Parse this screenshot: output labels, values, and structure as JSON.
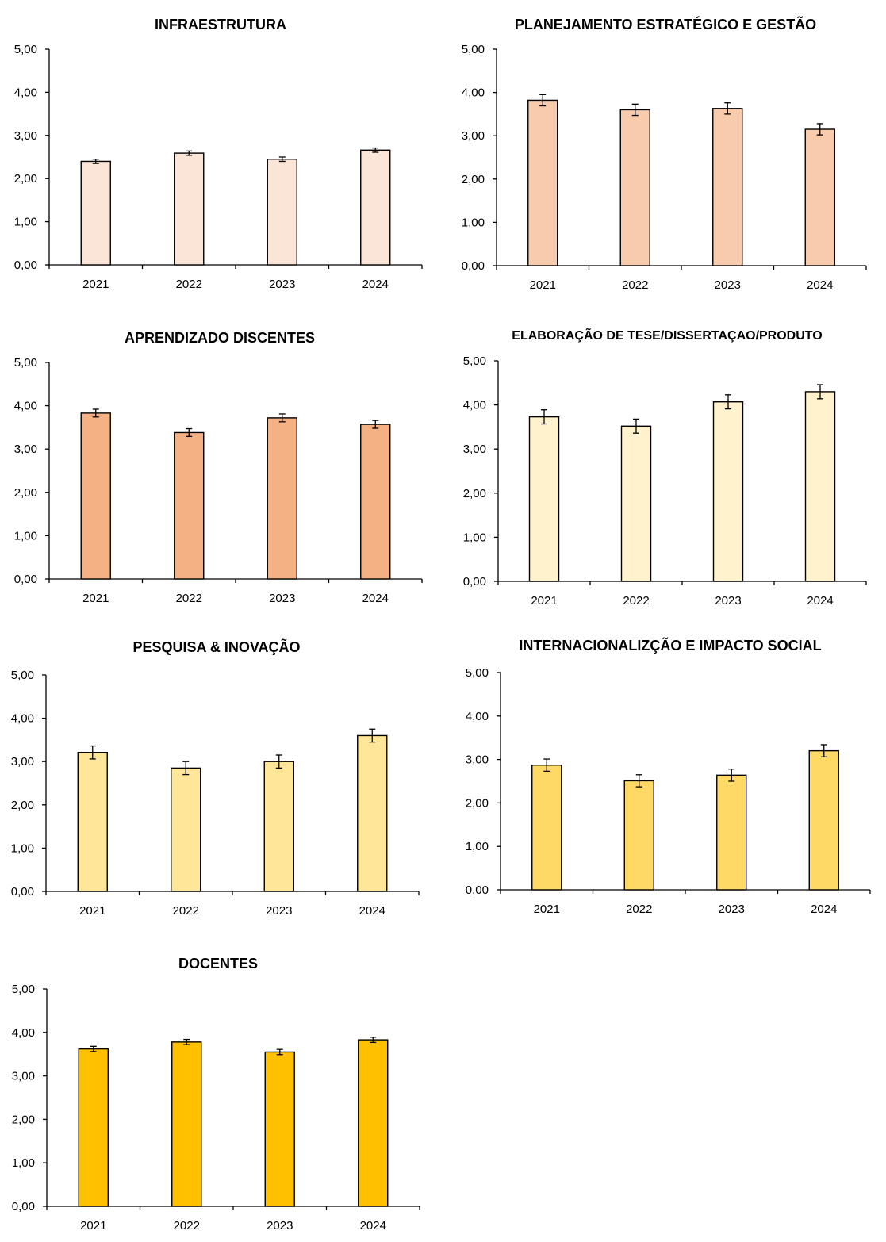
{
  "chart_data": [
    {
      "type": "bar",
      "title": "INFRAESTRUTURA",
      "categories": [
        "2021",
        "2022",
        "2023",
        "2024"
      ],
      "values": [
        2.4,
        2.59,
        2.45,
        2.66
      ],
      "error": [
        0.05,
        0.05,
        0.05,
        0.05
      ],
      "ylim": [
        0,
        5
      ],
      "yticks": [
        "0,00",
        "1,00",
        "2,00",
        "3,00",
        "4,00",
        "5,00"
      ],
      "color": "#fbe5d6",
      "xlabel": "",
      "ylabel": ""
    },
    {
      "type": "bar",
      "title": "PLANEJAMENTO ESTRATÉGICO E GESTÃO",
      "categories": [
        "2021",
        "2022",
        "2023",
        "2024"
      ],
      "values": [
        3.82,
        3.6,
        3.63,
        3.15
      ],
      "error": [
        0.13,
        0.13,
        0.13,
        0.13
      ],
      "ylim": [
        0,
        5
      ],
      "yticks": [
        "0,00",
        "1,00",
        "2,00",
        "3,00",
        "4,00",
        "5,00"
      ],
      "color": "#f8cbad",
      "xlabel": "",
      "ylabel": ""
    },
    {
      "type": "bar",
      "title": "APRENDIZADO DISCENTES",
      "categories": [
        "2021",
        "2022",
        "2023",
        "2024"
      ],
      "values": [
        3.83,
        3.38,
        3.72,
        3.57
      ],
      "error": [
        0.09,
        0.09,
        0.09,
        0.09
      ],
      "ylim": [
        0,
        5
      ],
      "yticks": [
        "0,00",
        "1,00",
        "2,00",
        "3,00",
        "4,00",
        "5,00"
      ],
      "color": "#f4b183",
      "xlabel": "",
      "ylabel": ""
    },
    {
      "type": "bar",
      "title": "ELABORAÇÃO DE TESE/DISSERTAÇAO/PRODUTO",
      "categories": [
        "2021",
        "2022",
        "2023",
        "2024"
      ],
      "values": [
        3.73,
        3.52,
        4.07,
        4.3
      ],
      "error": [
        0.16,
        0.16,
        0.16,
        0.16
      ],
      "ylim": [
        0,
        5
      ],
      "yticks": [
        "0,00",
        "1,00",
        "2,00",
        "3,00",
        "4,00",
        "5,00"
      ],
      "color": "#fff2cc",
      "xlabel": "",
      "ylabel": ""
    },
    {
      "type": "bar",
      "title": "PESQUISA & INOVAÇÃO",
      "categories": [
        "2021",
        "2022",
        "2023",
        "2024"
      ],
      "values": [
        3.21,
        2.85,
        3.0,
        3.6
      ],
      "error": [
        0.15,
        0.15,
        0.15,
        0.15
      ],
      "ylim": [
        0,
        5
      ],
      "yticks": [
        "0,00",
        "1,00",
        "2,00",
        "3,00",
        "4,00",
        "5,00"
      ],
      "color": "#ffe699",
      "xlabel": "",
      "ylabel": ""
    },
    {
      "type": "bar",
      "title": "INTERNACIONALIZÇÃO E IMPACTO SOCIAL",
      "categories": [
        "2021",
        "2022",
        "2023",
        "2024"
      ],
      "values": [
        2.87,
        2.51,
        2.64,
        3.2
      ],
      "error": [
        0.14,
        0.14,
        0.14,
        0.14
      ],
      "ylim": [
        0,
        5
      ],
      "yticks": [
        "0,00",
        "1,00",
        "2,00",
        "3,00",
        "4,00",
        "5,00"
      ],
      "color": "#ffd966",
      "xlabel": "",
      "ylabel": ""
    },
    {
      "type": "bar",
      "title": "DOCENTES",
      "categories": [
        "2021",
        "2022",
        "2023",
        "2024"
      ],
      "values": [
        3.62,
        3.78,
        3.55,
        3.83
      ],
      "error": [
        0.06,
        0.06,
        0.06,
        0.06
      ],
      "ylim": [
        0,
        5
      ],
      "yticks": [
        "0,00",
        "1,00",
        "2,00",
        "3,00",
        "4,00",
        "5,00"
      ],
      "color": "#ffc000",
      "xlabel": "",
      "ylabel": ""
    }
  ]
}
